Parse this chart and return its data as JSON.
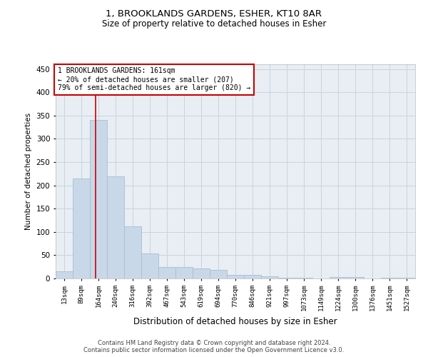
{
  "title1": "1, BROOKLANDS GARDENS, ESHER, KT10 8AR",
  "title2": "Size of property relative to detached houses in Esher",
  "xlabel": "Distribution of detached houses by size in Esher",
  "ylabel": "Number of detached properties",
  "categories": [
    "13sqm",
    "89sqm",
    "164sqm",
    "240sqm",
    "316sqm",
    "392sqm",
    "467sqm",
    "543sqm",
    "619sqm",
    "694sqm",
    "770sqm",
    "846sqm",
    "921sqm",
    "997sqm",
    "1073sqm",
    "1149sqm",
    "1224sqm",
    "1300sqm",
    "1376sqm",
    "1451sqm",
    "1527sqm"
  ],
  "values": [
    15,
    215,
    340,
    220,
    112,
    53,
    25,
    25,
    22,
    18,
    8,
    7,
    5,
    2,
    2,
    0,
    3,
    3,
    0,
    2,
    2
  ],
  "bar_color": "#c8d8e8",
  "bar_edge_color": "#a8bece",
  "grid_color": "#c8d4de",
  "background_color": "#ffffff",
  "plot_bg_color": "#e8eef4",
  "red_line_x": 1.82,
  "annotation_text": "1 BROOKLANDS GARDENS: 161sqm\n← 20% of detached houses are smaller (207)\n79% of semi-detached houses are larger (820) →",
  "annotation_box_color": "#ffffff",
  "annotation_box_edge": "#cc0000",
  "footer_line1": "Contains HM Land Registry data © Crown copyright and database right 2024.",
  "footer_line2": "Contains public sector information licensed under the Open Government Licence v3.0.",
  "ylim": [
    0,
    460
  ],
  "yticks": [
    0,
    50,
    100,
    150,
    200,
    250,
    300,
    350,
    400,
    450
  ]
}
